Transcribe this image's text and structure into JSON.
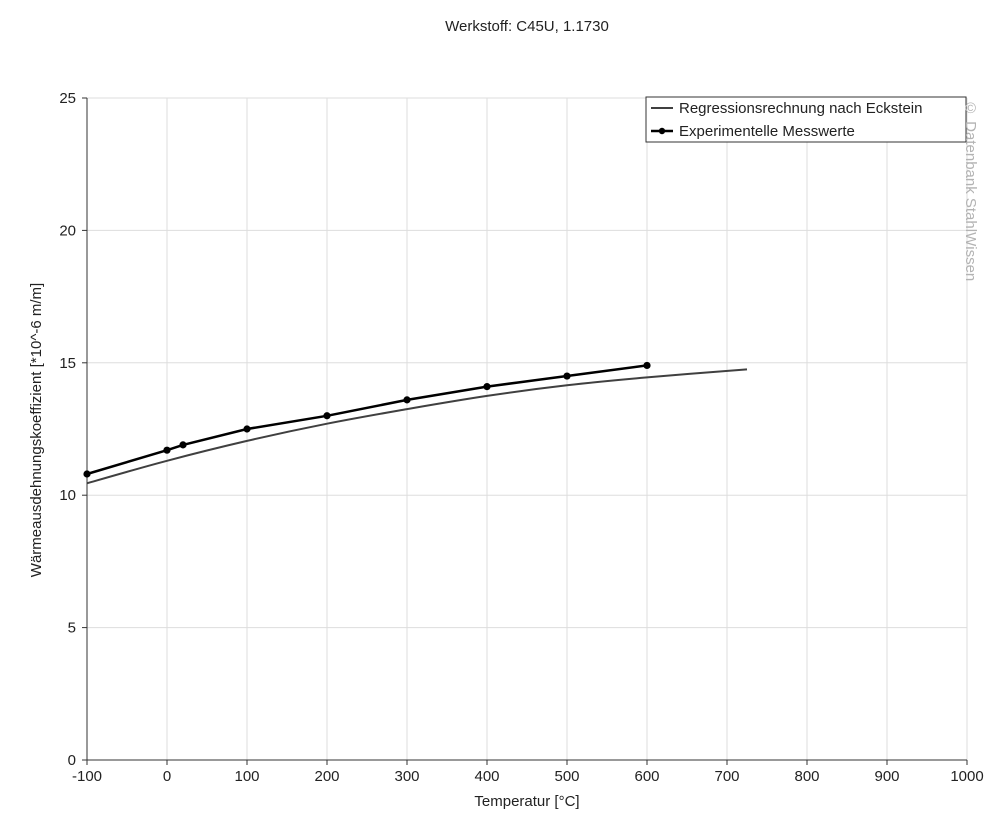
{
  "chart_data": {
    "type": "line",
    "title": "Werkstoff: C45U, 1.1730",
    "xlabel": "Temperatur [°C]",
    "ylabel": "Wärmeausdehnungskoeffizient [*10^-6 m/m]",
    "xlim": [
      -100,
      1000
    ],
    "ylim": [
      0,
      25
    ],
    "xticks": [
      -100,
      0,
      100,
      200,
      300,
      400,
      500,
      600,
      700,
      800,
      900,
      1000
    ],
    "yticks": [
      0,
      5,
      10,
      15,
      20,
      25
    ],
    "grid": true,
    "legend": "top-right",
    "watermark": "© Datenbank StahlWissen",
    "series": [
      {
        "name": "Regressionsrechnung nach Eckstein",
        "color": "#404040",
        "markers": false,
        "x": [
          -100,
          0,
          100,
          200,
          300,
          400,
          500,
          600,
          725
        ],
        "y": [
          10.45,
          11.3,
          12.05,
          12.7,
          13.25,
          13.75,
          14.15,
          14.45,
          14.75
        ]
      },
      {
        "name": "Experimentelle Messwerte",
        "color": "#000000",
        "markers": true,
        "x": [
          -100,
          0,
          20,
          100,
          200,
          300,
          400,
          500,
          600
        ],
        "y": [
          10.8,
          11.7,
          11.9,
          12.5,
          13.0,
          13.6,
          14.1,
          14.5,
          14.9
        ]
      }
    ]
  }
}
